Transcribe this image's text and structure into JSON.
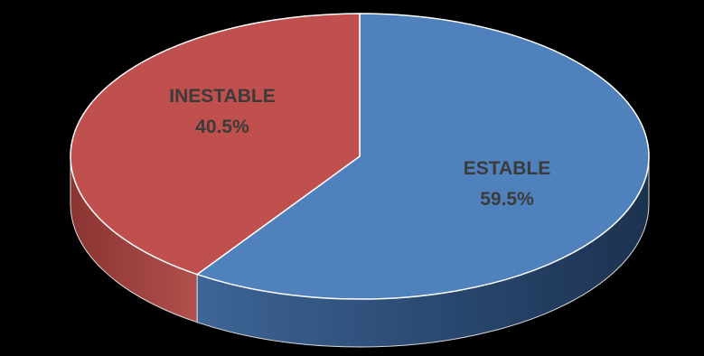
{
  "chart_data": {
    "type": "pie",
    "style": "3d",
    "title": "",
    "legend": "none",
    "slices": [
      {
        "label": "ESTABLE",
        "value": 59.5,
        "display_value": "59.5%",
        "color": "#4f81bd"
      },
      {
        "label": "INESTABLE",
        "value": 40.5,
        "display_value": "40.5%",
        "color": "#c0504d"
      }
    ]
  },
  "colors": {
    "background": "#000000",
    "label_text": "#3b3b3b",
    "estable_side": "#2b4a73",
    "inestable_side": "#7a2e2c"
  }
}
